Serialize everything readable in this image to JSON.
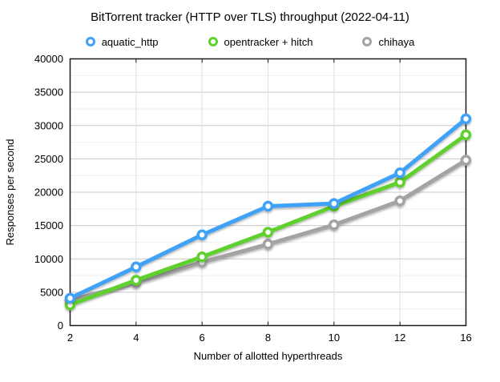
{
  "title": "BitTorrent tracker (HTTP over TLS) throughput (2022-04-11)",
  "colors": {
    "background": "#ffffff",
    "axis": "#1a1a1a",
    "grid_major": "#c9c9c9",
    "grid_minor": "#efefef",
    "grid_vertical": "#e0e0e0",
    "text": "#000000",
    "series_blue": "#3fa2f7",
    "series_green": "#5fd02e",
    "series_gray": "#a3a3a3"
  },
  "chart_data": {
    "type": "line",
    "title": "BitTorrent tracker (HTTP over TLS) throughput (2022-04-11)",
    "xlabel": "Number of allotted hyperthreads",
    "ylabel": "Responses per second",
    "categories": [
      2,
      4,
      6,
      8,
      10,
      12,
      16
    ],
    "x_axis_type": "categorical-evenly-spaced",
    "ylim": [
      0,
      40000
    ],
    "y_label_step": 5000,
    "y_minor_step": 2500,
    "grid": true,
    "legend_position": "top",
    "marker_style": "donut",
    "series": [
      {
        "name": "aquatic_http",
        "color": "#3fa2f7",
        "values": [
          4100,
          8800,
          13600,
          17900,
          18300,
          22900,
          31000
        ]
      },
      {
        "name": "opentracker + hitch",
        "color": "#5fd02e",
        "values": [
          3100,
          6800,
          10300,
          14000,
          17900,
          21500,
          28600
        ]
      },
      {
        "name": "chihaya",
        "color": "#a3a3a3",
        "values": [
          3800,
          6400,
          9500,
          12200,
          15100,
          18700,
          24800
        ]
      }
    ]
  }
}
